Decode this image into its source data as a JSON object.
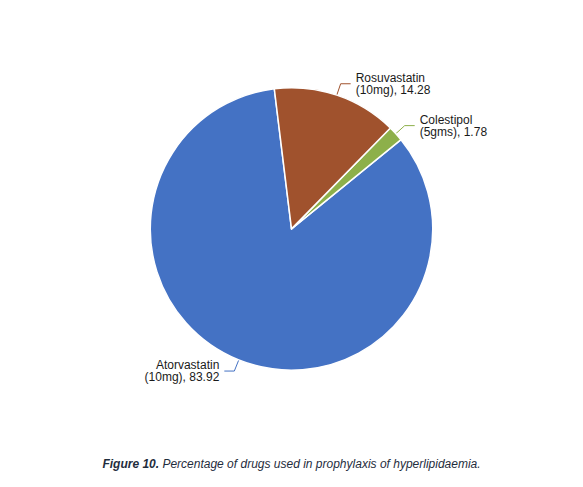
{
  "chart_data": {
    "type": "pie",
    "title": "Figure 10. Percentage of drugs used in prophylaxis of hyperlipidaemia.",
    "categories": [
      "Atorvastatin\n(10mg), 83.92",
      "Colestipol\n(5gms), 1.78",
      "Rosuvastatin\n(10mg), 14.28"
    ],
    "values": [
      83.92,
      1.78,
      14.28
    ],
    "colors": [
      "#4472C4",
      "#8DB04A",
      "#A0522D"
    ]
  }
}
